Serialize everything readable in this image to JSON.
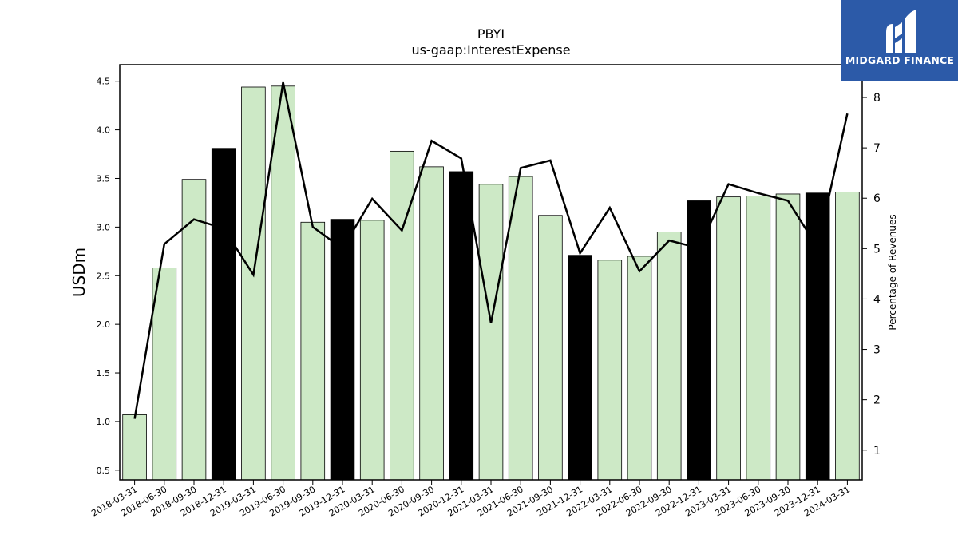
{
  "logo": {
    "text": "MIDGARD FINANCE"
  },
  "chart_data": {
    "type": "bar",
    "title": "PBYI",
    "subtitle": "us-gaap:InterestExpense",
    "ylabel": "USDm",
    "y2label": "Percentage of Revenues",
    "ylim": [
      0.4,
      4.67
    ],
    "y2lim": [
      0.41,
      8.65
    ],
    "yticks": [
      0.5,
      1.0,
      1.5,
      2.0,
      2.5,
      3.0,
      3.5,
      4.0,
      4.5
    ],
    "y2ticks": [
      1,
      2,
      3,
      4,
      5,
      6,
      7,
      8
    ],
    "categories": [
      "2018-03-31",
      "2018-06-30",
      "2018-09-30",
      "2018-12-31",
      "2019-03-31",
      "2019-06-30",
      "2019-09-30",
      "2019-12-31",
      "2020-03-31",
      "2020-06-30",
      "2020-09-30",
      "2020-12-31",
      "2021-03-31",
      "2021-06-30",
      "2021-09-30",
      "2021-12-31",
      "2022-03-31",
      "2022-06-30",
      "2022-09-30",
      "2022-12-31",
      "2023-03-31",
      "2023-06-30",
      "2023-09-30",
      "2023-12-31",
      "2024-03-31"
    ],
    "series": [
      {
        "type": "bar",
        "values": [
          1.07,
          2.58,
          3.49,
          3.81,
          4.44,
          4.45,
          3.05,
          3.08,
          3.07,
          3.78,
          3.62,
          3.57,
          3.44,
          3.52,
          3.12,
          2.71,
          2.66,
          2.7,
          2.95,
          3.27,
          3.31,
          3.32,
          3.34,
          3.35,
          3.36
        ],
        "highlight": [
          false,
          false,
          false,
          true,
          false,
          false,
          false,
          true,
          false,
          false,
          false,
          true,
          false,
          false,
          false,
          true,
          false,
          false,
          false,
          true,
          false,
          false,
          false,
          true,
          false
        ]
      },
      {
        "type": "line",
        "axis": "right",
        "values": [
          1.62,
          5.09,
          5.58,
          5.4,
          4.48,
          8.3,
          5.43,
          5.0,
          5.99,
          5.36,
          7.14,
          6.79,
          3.52,
          6.6,
          6.75,
          4.91,
          5.81,
          4.55,
          5.16,
          5.01,
          6.28,
          6.1,
          5.95,
          5.02,
          7.68
        ]
      }
    ],
    "colors": {
      "bar": "#cde9c6",
      "bar_highlight": "#000000",
      "line": "#000000"
    },
    "grid": false,
    "legend": "none"
  }
}
